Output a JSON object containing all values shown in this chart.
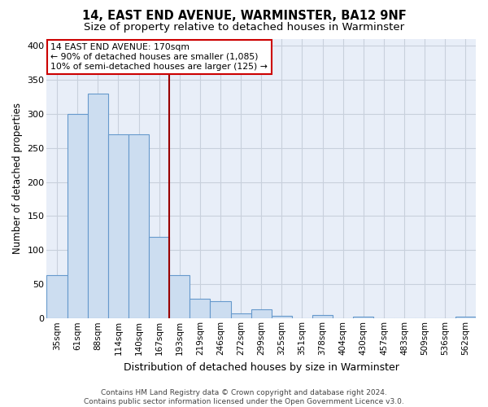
{
  "title": "14, EAST END AVENUE, WARMINSTER, BA12 9NF",
  "subtitle": "Size of property relative to detached houses in Warminster",
  "xlabel": "Distribution of detached houses by size in Warminster",
  "ylabel": "Number of detached properties",
  "bar_labels": [
    "35sqm",
    "61sqm",
    "88sqm",
    "114sqm",
    "140sqm",
    "167sqm",
    "193sqm",
    "219sqm",
    "246sqm",
    "272sqm",
    "299sqm",
    "325sqm",
    "351sqm",
    "378sqm",
    "404sqm",
    "430sqm",
    "457sqm",
    "483sqm",
    "509sqm",
    "536sqm",
    "562sqm"
  ],
  "bar_values": [
    63,
    300,
    330,
    270,
    270,
    120,
    63,
    29,
    25,
    8,
    13,
    4,
    0,
    5,
    0,
    3,
    0,
    0,
    0,
    0,
    3
  ],
  "bar_color": "#ccddf0",
  "bar_edge_color": "#6699cc",
  "grid_color": "#c8d0dc",
  "bg_color": "#e8eef8",
  "vline_x": 5.5,
  "vline_color": "#990000",
  "annotation_line1": "14 EAST END AVENUE: 170sqm",
  "annotation_line2": "← 90% of detached houses are smaller (1,085)",
  "annotation_line3": "10% of semi-detached houses are larger (125) →",
  "annotation_box_facecolor": "#ffffff",
  "annotation_box_edgecolor": "#cc0000",
  "footer_line1": "Contains HM Land Registry data © Crown copyright and database right 2024.",
  "footer_line2": "Contains public sector information licensed under the Open Government Licence v3.0.",
  "ylim": [
    0,
    410
  ],
  "yticks": [
    0,
    50,
    100,
    150,
    200,
    250,
    300,
    350,
    400
  ],
  "title_fontsize": 10.5,
  "subtitle_fontsize": 9.5,
  "ylabel_fontsize": 8.5,
  "xlabel_fontsize": 9,
  "tick_fontsize": 7.5,
  "footer_fontsize": 6.5,
  "annotation_fontsize": 7.8
}
